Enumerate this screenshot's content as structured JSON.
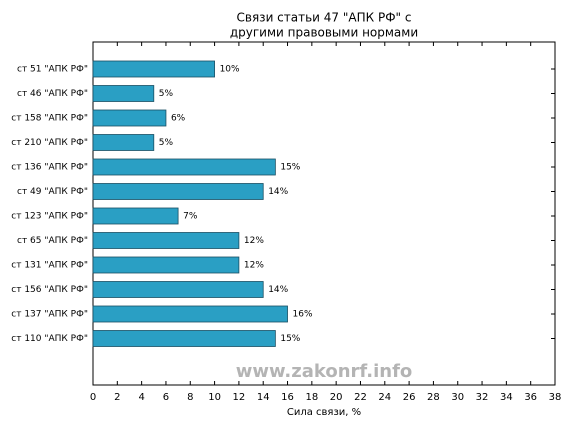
{
  "chart_data": {
    "type": "barh",
    "title": [
      "Связи статьи 47 \"АПК РФ\" с",
      "другими правовыми нормами"
    ],
    "xlabel": "Сила связи, %",
    "categories": [
      "ст 51 \"АПК РФ\"",
      "ст 46 \"АПК РФ\"",
      "ст 158 \"АПК РФ\"",
      "ст 210 \"АПК РФ\"",
      "ст 136 \"АПК РФ\"",
      "ст 49 \"АПК РФ\"",
      "ст 123 \"АПК РФ\"",
      "ст 65 \"АПК РФ\"",
      "ст 131 \"АПК РФ\"",
      "ст 156 \"АПК РФ\"",
      "ст 137 \"АПК РФ\"",
      "ст 110 \"АПК РФ\""
    ],
    "values": [
      10,
      5,
      6,
      5,
      15,
      14,
      7,
      12,
      12,
      14,
      16,
      15
    ],
    "value_labels": [
      "10%",
      "5%",
      "6%",
      "5%",
      "15%",
      "14%",
      "7%",
      "12%",
      "12%",
      "14%",
      "16%",
      "15%"
    ],
    "color": "#2a9fc4",
    "xlim": [
      0,
      38
    ],
    "xticks": [
      0,
      2,
      4,
      6,
      8,
      10,
      12,
      14,
      16,
      18,
      20,
      22,
      24,
      26,
      28,
      30,
      32,
      34,
      36,
      38
    ],
    "grid": false,
    "watermark": "www.zakonrf.info"
  }
}
